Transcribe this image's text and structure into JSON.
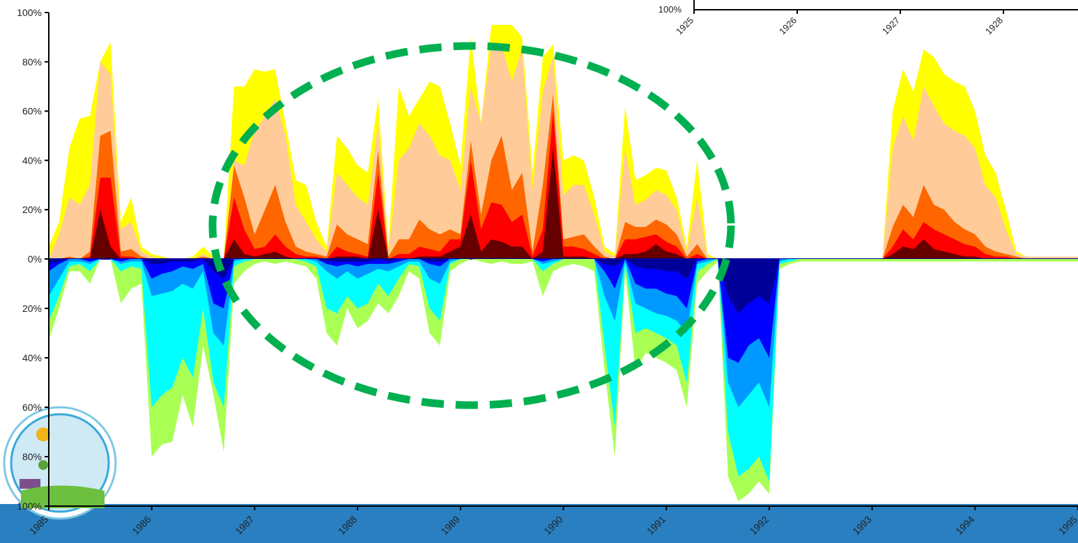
{
  "chart_data": {
    "type": "area",
    "y_tick_labels_upper": [
      "100%",
      "80%",
      "60%",
      "40%",
      "20%",
      "0%"
    ],
    "y_tick_labels_lower": [
      "20%",
      "40%",
      "60%",
      "80%",
      "100%"
    ],
    "x_tick_labels": [
      "1985",
      "1986",
      "1987",
      "1988",
      "1989",
      "1990",
      "1991",
      "1992",
      "1993",
      "1994",
      "1995"
    ],
    "ylim_upper": [
      0,
      100
    ],
    "ylim_lower": [
      0,
      100
    ],
    "xlim": [
      1985,
      1995
    ],
    "background_chart": {
      "y_tick_label": "100%",
      "x_tick_labels": [
        "1925",
        "1926",
        "1927",
        "1928"
      ]
    },
    "annotation": {
      "shape": "dashed-ellipse",
      "color": "#00b050"
    },
    "colors": {
      "wet": [
        "#ffff00",
        "#ffcc99",
        "#ff6600",
        "#ff0000",
        "#660000"
      ],
      "dry": [
        "#aaff55",
        "#00ffff",
        "#0099ff",
        "#0000ff",
        "#000099"
      ],
      "bottom_bar": "#2a7fc0"
    },
    "x": [
      1985.0,
      1985.1,
      1985.2,
      1985.3,
      1985.4,
      1985.5,
      1985.6,
      1985.7,
      1985.8,
      1985.9,
      1986.0,
      1986.1,
      1986.2,
      1986.3,
      1986.4,
      1986.5,
      1986.6,
      1986.7,
      1986.8,
      1986.9,
      1987.0,
      1987.1,
      1987.2,
      1987.3,
      1987.4,
      1987.5,
      1987.6,
      1987.7,
      1987.8,
      1987.9,
      1988.0,
      1988.1,
      1988.2,
      1988.3,
      1988.4,
      1988.5,
      1988.6,
      1988.7,
      1988.8,
      1988.9,
      1989.0,
      1989.1,
      1989.2,
      1989.3,
      1989.4,
      1989.5,
      1989.6,
      1989.7,
      1989.8,
      1989.9,
      1990.0,
      1990.1,
      1990.2,
      1990.3,
      1990.4,
      1990.5,
      1990.6,
      1990.7,
      1990.8,
      1990.9,
      1991.0,
      1991.1,
      1991.2,
      1991.3,
      1991.4,
      1991.5,
      1991.6,
      1991.7,
      1991.8,
      1991.9,
      1992.0,
      1992.1,
      1992.2,
      1992.3,
      1992.4,
      1992.5,
      1992.6,
      1992.7,
      1992.8,
      1992.9,
      1993.0,
      1993.1,
      1993.2,
      1993.3,
      1993.4,
      1993.5,
      1993.6,
      1993.7,
      1993.8,
      1993.9,
      1994.0,
      1994.1,
      1994.2,
      1994.3,
      1994.4,
      1994.5,
      1994.6,
      1994.7,
      1994.8,
      1994.9,
      1995.0
    ],
    "wet_series": [
      {
        "values": [
          5,
          15,
          45,
          57,
          58,
          80,
          88,
          15,
          25,
          5,
          2,
          1,
          0,
          0,
          1,
          5,
          1,
          0,
          70,
          70,
          77,
          76,
          77,
          55,
          32,
          30,
          15,
          5,
          50,
          45,
          38,
          35,
          65,
          5,
          70,
          58,
          65,
          72,
          70,
          55,
          38,
          90,
          55,
          95,
          95,
          95,
          90,
          35,
          82,
          87,
          40,
          42,
          40,
          25,
          5,
          2,
          62,
          32,
          34,
          37,
          36,
          25,
          5,
          40,
          2,
          0,
          0,
          0,
          0,
          0,
          0,
          0,
          0,
          0,
          0,
          0,
          0,
          0,
          0,
          0,
          0,
          0,
          60,
          77,
          68,
          85,
          82,
          75,
          72,
          70,
          60,
          42,
          35,
          20,
          3,
          1,
          1,
          1,
          1,
          1,
          1
        ]
      },
      {
        "values": [
          0,
          10,
          25,
          22,
          30,
          80,
          75,
          12,
          15,
          3,
          1,
          0,
          0,
          0,
          0,
          2,
          0,
          0,
          40,
          38,
          52,
          58,
          65,
          50,
          22,
          15,
          8,
          3,
          35,
          30,
          25,
          22,
          55,
          3,
          40,
          45,
          55,
          50,
          42,
          40,
          28,
          70,
          55,
          86,
          87,
          72,
          85,
          28,
          68,
          82,
          26,
          30,
          30,
          18,
          3,
          1,
          45,
          22,
          24,
          28,
          26,
          20,
          3,
          25,
          1,
          0,
          0,
          0,
          0,
          0,
          0,
          0,
          0,
          0,
          0,
          0,
          0,
          0,
          0,
          0,
          0,
          0,
          45,
          58,
          48,
          70,
          62,
          55,
          52,
          50,
          45,
          30,
          25,
          12,
          2,
          1,
          1,
          1,
          1,
          1,
          1
        ]
      },
      {
        "values": [
          0,
          0,
          1,
          0,
          3,
          50,
          52,
          3,
          4,
          1,
          0,
          0,
          0,
          0,
          0,
          1,
          0,
          0,
          38,
          25,
          10,
          20,
          30,
          15,
          5,
          3,
          2,
          1,
          14,
          10,
          8,
          6,
          44,
          1,
          8,
          8,
          16,
          12,
          10,
          12,
          10,
          48,
          18,
          40,
          50,
          28,
          35,
          3,
          30,
          67,
          8,
          9,
          10,
          5,
          1,
          0,
          15,
          13,
          13,
          16,
          14,
          10,
          1,
          6,
          0,
          0,
          0,
          0,
          0,
          0,
          0,
          0,
          0,
          0,
          0,
          0,
          0,
          0,
          0,
          0,
          0,
          0,
          13,
          22,
          17,
          30,
          22,
          20,
          15,
          12,
          10,
          5,
          3,
          2,
          1,
          0,
          0,
          0,
          0,
          0,
          0
        ]
      },
      {
        "values": [
          0,
          0,
          0,
          0,
          1,
          33,
          33,
          1,
          1,
          0,
          0,
          0,
          0,
          0,
          0,
          0,
          0,
          0,
          25,
          12,
          4,
          5,
          10,
          5,
          2,
          1,
          1,
          0,
          5,
          3,
          2,
          1,
          35,
          0,
          2,
          2,
          5,
          4,
          3,
          8,
          8,
          40,
          12,
          23,
          22,
          15,
          18,
          1,
          12,
          60,
          5,
          5,
          4,
          2,
          0,
          0,
          8,
          8,
          9,
          10,
          7,
          5,
          0,
          2,
          0,
          0,
          0,
          0,
          0,
          0,
          0,
          0,
          0,
          0,
          0,
          0,
          0,
          0,
          0,
          0,
          0,
          0,
          5,
          12,
          8,
          15,
          12,
          10,
          8,
          6,
          5,
          2,
          1,
          1,
          0,
          0,
          0,
          0,
          0,
          0,
          0
        ]
      },
      {
        "values": [
          0,
          0,
          0,
          0,
          0,
          20,
          5,
          0,
          0,
          0,
          0,
          0,
          0,
          0,
          0,
          0,
          0,
          0,
          8,
          2,
          1,
          2,
          3,
          1,
          0,
          0,
          0,
          0,
          1,
          1,
          1,
          0,
          20,
          0,
          0,
          0,
          1,
          1,
          1,
          3,
          5,
          18,
          3,
          8,
          7,
          5,
          5,
          0,
          3,
          45,
          1,
          1,
          1,
          0,
          0,
          0,
          2,
          2,
          3,
          6,
          3,
          2,
          0,
          0,
          0,
          0,
          0,
          0,
          0,
          0,
          0,
          0,
          0,
          0,
          0,
          0,
          0,
          0,
          0,
          0,
          0,
          0,
          2,
          5,
          4,
          8,
          4,
          3,
          2,
          1,
          1,
          0,
          0,
          0,
          0,
          0,
          0,
          0,
          0,
          0,
          0
        ]
      }
    ],
    "dry_series": [
      {
        "values": [
          33,
          20,
          5,
          5,
          10,
          0,
          0,
          18,
          12,
          10,
          80,
          75,
          74,
          55,
          68,
          35,
          55,
          78,
          10,
          5,
          2,
          1,
          2,
          1,
          2,
          3,
          8,
          30,
          35,
          20,
          28,
          25,
          18,
          22,
          15,
          5,
          8,
          30,
          35,
          5,
          2,
          0,
          1,
          2,
          1,
          2,
          2,
          1,
          15,
          5,
          3,
          2,
          3,
          5,
          45,
          80,
          5,
          45,
          38,
          40,
          42,
          45,
          60,
          10,
          5,
          1,
          88,
          98,
          95,
          90,
          95,
          4,
          2,
          1,
          1,
          1,
          1,
          1,
          1,
          1,
          1,
          1,
          1,
          1,
          1,
          1,
          1,
          1,
          1,
          1,
          1,
          1,
          1,
          1,
          1,
          1,
          1,
          1,
          1,
          1,
          1
        ]
      },
      {
        "values": [
          25,
          15,
          3,
          2,
          5,
          0,
          0,
          5,
          3,
          4,
          60,
          55,
          52,
          40,
          48,
          20,
          50,
          60,
          3,
          1,
          0,
          0,
          0,
          0,
          0,
          1,
          3,
          20,
          22,
          15,
          20,
          18,
          10,
          15,
          8,
          2,
          3,
          20,
          25,
          2,
          0,
          0,
          0,
          0,
          0,
          0,
          0,
          0,
          5,
          2,
          0,
          0,
          0,
          0,
          35,
          68,
          2,
          30,
          28,
          30,
          32,
          35,
          50,
          5,
          2,
          0,
          70,
          88,
          85,
          80,
          90,
          2,
          1,
          0,
          0,
          0,
          0,
          0,
          0,
          0,
          0,
          0,
          0,
          0,
          0,
          0,
          0,
          0,
          0,
          0,
          0,
          0,
          0,
          0,
          0,
          0,
          0,
          0,
          0,
          0,
          0
        ]
      },
      {
        "values": [
          15,
          8,
          1,
          1,
          2,
          0,
          0,
          2,
          1,
          1,
          15,
          14,
          13,
          10,
          12,
          5,
          30,
          35,
          1,
          0,
          0,
          0,
          0,
          0,
          0,
          0,
          1,
          5,
          8,
          5,
          8,
          6,
          4,
          5,
          3,
          1,
          1,
          8,
          10,
          1,
          0,
          0,
          0,
          0,
          0,
          0,
          0,
          0,
          2,
          1,
          0,
          0,
          0,
          0,
          15,
          25,
          1,
          18,
          20,
          22,
          23,
          25,
          30,
          2,
          1,
          0,
          50,
          60,
          55,
          50,
          60,
          1,
          0,
          0,
          0,
          0,
          0,
          0,
          0,
          0,
          0,
          0,
          0,
          0,
          0,
          0,
          0,
          0,
          0,
          0,
          0,
          0,
          0,
          0,
          0,
          0,
          0,
          0,
          0,
          0,
          0
        ]
      },
      {
        "values": [
          5,
          2,
          0,
          0,
          1,
          0,
          0,
          1,
          0,
          0,
          8,
          6,
          5,
          3,
          4,
          2,
          18,
          20,
          0,
          0,
          0,
          0,
          0,
          0,
          0,
          0,
          0,
          2,
          3,
          2,
          3,
          2,
          2,
          2,
          1,
          0,
          0,
          2,
          3,
          0,
          0,
          0,
          0,
          0,
          0,
          0,
          0,
          0,
          1,
          0,
          0,
          0,
          0,
          0,
          5,
          12,
          0,
          10,
          12,
          12,
          14,
          15,
          20,
          1,
          0,
          0,
          40,
          42,
          35,
          32,
          40,
          0,
          0,
          0,
          0,
          0,
          0,
          0,
          0,
          0,
          0,
          0,
          0,
          0,
          0,
          0,
          0,
          0,
          0,
          0,
          0,
          0,
          0,
          0,
          0,
          0,
          0,
          0,
          0,
          0,
          0
        ]
      },
      {
        "values": [
          2,
          1,
          0,
          0,
          0,
          0,
          0,
          0,
          0,
          0,
          2,
          2,
          1,
          1,
          1,
          0,
          5,
          8,
          0,
          0,
          0,
          0,
          0,
          0,
          0,
          0,
          0,
          1,
          1,
          1,
          1,
          1,
          0,
          1,
          0,
          0,
          0,
          1,
          1,
          0,
          0,
          0,
          0,
          0,
          0,
          0,
          0,
          0,
          0,
          0,
          0,
          0,
          0,
          0,
          2,
          3,
          0,
          3,
          4,
          4,
          5,
          5,
          8,
          0,
          0,
          0,
          15,
          22,
          18,
          15,
          18,
          0,
          0,
          0,
          0,
          0,
          0,
          0,
          0,
          0,
          0,
          0,
          0,
          0,
          0,
          0,
          0,
          0,
          0,
          0,
          0,
          0,
          0,
          0,
          0,
          0,
          0,
          0,
          0,
          0,
          0
        ]
      }
    ]
  }
}
